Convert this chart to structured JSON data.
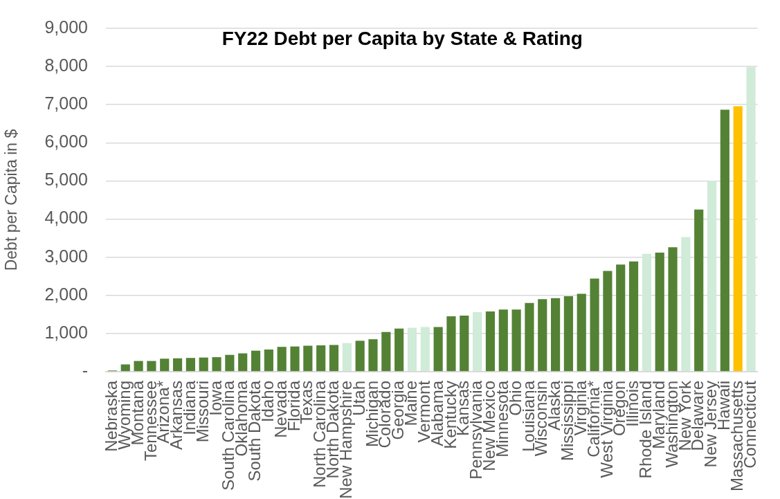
{
  "chart_data": {
    "type": "bar",
    "title": "FY22 Debt per Capita by State & Rating",
    "ylabel": "Debt per Capita in $",
    "categories": [
      "Nebraska",
      "Wyoming",
      "Montana",
      "Tennessee",
      "Arizona*",
      "Arkansas",
      "Indiana",
      "Missouri",
      "Iowa",
      "South Carolina",
      "Oklahoma",
      "South Dakota",
      "Idaho",
      "Nevada",
      "Florida",
      "Texas",
      "North Carolina",
      "North Dakota",
      "New Hampshire",
      "Utah",
      "Michigan",
      "Colorado",
      "Georgia",
      "Maine",
      "Vermont",
      "Alabama",
      "Kentucky",
      "Kansas",
      "Pennsylvania",
      "New Mexico",
      "Minnesota",
      "Ohio",
      "Louisiana",
      "Wisconsin",
      "Alaska",
      "Mississippi",
      "Virginia",
      "California*",
      "West Virginia",
      "Oregon",
      "Illinois",
      "Rhode Island",
      "Maryland",
      "Washington",
      "New York",
      "Delaware",
      "New Jersey",
      "Hawaii",
      "Massachusetts",
      "Connecticut"
    ],
    "values": [
      30,
      190,
      280,
      280,
      340,
      350,
      360,
      370,
      380,
      440,
      480,
      550,
      580,
      650,
      660,
      680,
      690,
      700,
      750,
      810,
      850,
      1040,
      1130,
      1150,
      1170,
      1170,
      1450,
      1470,
      1560,
      1580,
      1630,
      1630,
      1800,
      1900,
      1930,
      1980,
      2040,
      2440,
      2640,
      2810,
      2890,
      3090,
      3120,
      3260,
      3530,
      4250,
      5010,
      6870,
      6960,
      7990
    ],
    "colors": [
      "#548235",
      "#548235",
      "#548235",
      "#548235",
      "#548235",
      "#548235",
      "#548235",
      "#548235",
      "#548235",
      "#548235",
      "#548235",
      "#548235",
      "#548235",
      "#548235",
      "#548235",
      "#548235",
      "#548235",
      "#548235",
      "#d0ebd8",
      "#548235",
      "#548235",
      "#548235",
      "#548235",
      "#d0ebd8",
      "#d0ebd8",
      "#548235",
      "#548235",
      "#548235",
      "#d0ebd8",
      "#548235",
      "#548235",
      "#548235",
      "#548235",
      "#548235",
      "#548235",
      "#548235",
      "#548235",
      "#548235",
      "#548235",
      "#548235",
      "#548235",
      "#d0ebd8",
      "#548235",
      "#548235",
      "#d0ebd8",
      "#548235",
      "#d0ebd8",
      "#548235",
      "#ffc000",
      "#d0ebd8"
    ],
    "ylim": [
      0,
      9000
    ],
    "yticks": [
      {
        "value": 0,
        "label": "-"
      },
      {
        "value": 1000,
        "label": "1,000"
      },
      {
        "value": 2000,
        "label": "2,000"
      },
      {
        "value": 3000,
        "label": "3,000"
      },
      {
        "value": 4000,
        "label": "4,000"
      },
      {
        "value": 5000,
        "label": "5,000"
      },
      {
        "value": 6000,
        "label": "6,000"
      },
      {
        "value": 7000,
        "label": "7,000"
      },
      {
        "value": 8000,
        "label": "8,000"
      },
      {
        "value": 9000,
        "label": "9,000"
      }
    ],
    "grid": "y"
  }
}
